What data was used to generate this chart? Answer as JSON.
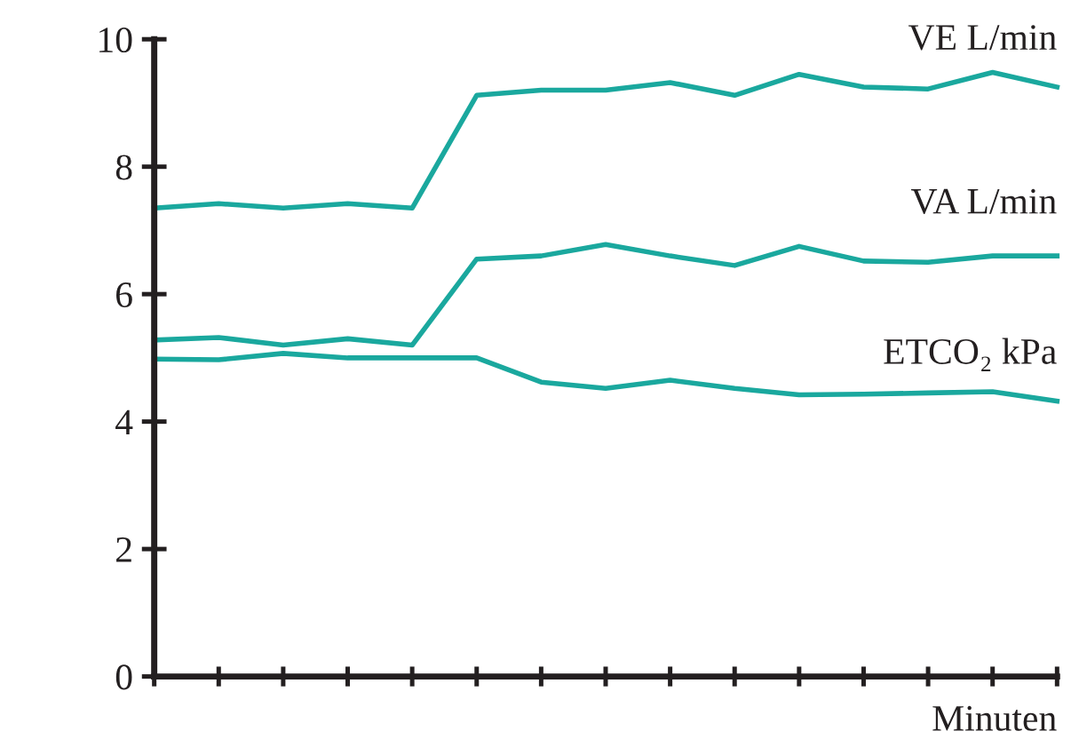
{
  "chart_data": {
    "type": "line",
    "xlabel": "Minuten",
    "categories": [
      null,
      null,
      null,
      null,
      null,
      null,
      null,
      null,
      null,
      null,
      null,
      null,
      null,
      null,
      null
    ],
    "series": [
      {
        "name": "VE L/min",
        "color": "#1aa89e",
        "values": [
          7.35,
          7.42,
          7.35,
          7.42,
          7.35,
          9.12,
          9.2,
          9.2,
          9.32,
          9.12,
          9.45,
          9.25,
          9.22,
          9.48,
          9.25
        ]
      },
      {
        "name": "VA L/min",
        "color": "#1aa89e",
        "values": [
          5.28,
          5.32,
          5.2,
          5.3,
          5.2,
          6.55,
          6.6,
          6.78,
          6.6,
          6.45,
          6.75,
          6.52,
          6.5,
          6.6,
          6.6
        ]
      },
      {
        "name": "ETCO₂ kPa",
        "color": "#1aa89e",
        "values": [
          4.98,
          4.97,
          5.07,
          5.0,
          5.0,
          5.0,
          4.62,
          4.52,
          4.65,
          4.52,
          4.42,
          4.43,
          4.45,
          4.47,
          4.32
        ]
      }
    ],
    "ylim": [
      0,
      10
    ],
    "yticks": [
      0,
      2,
      4,
      6,
      8,
      10
    ],
    "grid": false,
    "legend": false,
    "marker": "none",
    "line_style": "solid"
  }
}
